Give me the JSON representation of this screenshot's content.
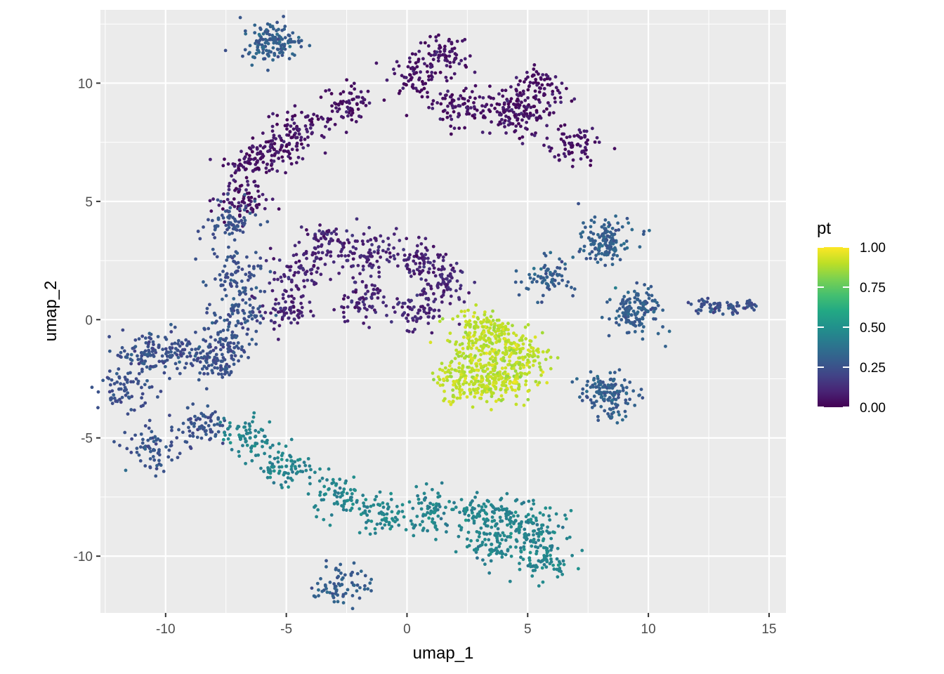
{
  "chart_data": {
    "type": "scatter",
    "xlabel": "umap_1",
    "ylabel": "umap_2",
    "xlim": [
      -12.7,
      15.7
    ],
    "ylim": [
      -12.4,
      13.1
    ],
    "x_ticks": [
      -10,
      -5,
      0,
      5,
      10,
      15
    ],
    "y_ticks": [
      -10,
      -5,
      0,
      5,
      10
    ],
    "x_tick_labels": [
      "-10",
      "-5",
      "0",
      "5",
      "10",
      "15"
    ],
    "y_tick_labels": [
      "-10",
      "-5",
      "0",
      "5",
      "10"
    ],
    "grid": true,
    "background": "#ebebeb",
    "color_variable": "pt",
    "colorscale": "viridis",
    "colorbar": {
      "title": "pt",
      "range": [
        0.0,
        1.0
      ],
      "ticks": [
        0.0,
        0.25,
        0.5,
        0.75,
        1.0
      ],
      "tick_labels": [
        "0.00",
        "0.25",
        "0.50",
        "0.75",
        "1.00"
      ],
      "position": "right"
    },
    "colors": {
      "viridis": [
        "#440154",
        "#482475",
        "#414487",
        "#355f8d",
        "#2a788e",
        "#21918c",
        "#22a884",
        "#44bf70",
        "#7ad151",
        "#bddf26",
        "#fde725"
      ]
    },
    "clusters": [
      {
        "label": "top arc",
        "pt": 0.05,
        "points": [
          [
            2.0,
            9.0
          ],
          [
            4.0,
            8.9
          ],
          [
            5.0,
            8.6
          ],
          [
            6.8,
            7.4
          ],
          [
            0.3,
            10.4
          ],
          [
            1.5,
            11.2
          ],
          [
            -2.5,
            9.2
          ],
          [
            -4.5,
            8.0
          ],
          [
            -5.5,
            7.2
          ],
          [
            -6.5,
            6.6
          ],
          [
            5.5,
            9.8
          ],
          [
            -6.8,
            5.0
          ]
        ]
      },
      {
        "label": "left arc",
        "pt": 0.25,
        "points": [
          [
            -7.2,
            4.0
          ],
          [
            -7.1,
            2.0
          ],
          [
            -7.0,
            0.3
          ],
          [
            -7.4,
            -1.0
          ],
          [
            -8.0,
            -1.8
          ],
          [
            -9.5,
            -1.3
          ],
          [
            -11.0,
            -1.4
          ],
          [
            -11.7,
            -3.0
          ],
          [
            -10.5,
            -5.5
          ],
          [
            -8.5,
            -4.5
          ]
        ]
      },
      {
        "label": "bottom tail",
        "pt": 0.45,
        "points": [
          [
            -6.5,
            -5.0
          ],
          [
            -5.0,
            -6.2
          ],
          [
            -3.0,
            -7.4
          ],
          [
            -1.0,
            -8.2
          ],
          [
            1.0,
            -8.1
          ],
          [
            3.0,
            -8.3
          ],
          [
            4.5,
            -8.5
          ],
          [
            5.5,
            -9.0
          ],
          [
            5.6,
            -10.2
          ],
          [
            3.5,
            -9.5
          ]
        ]
      },
      {
        "label": "middle blob",
        "pt": 0.1,
        "points": [
          [
            -5.1,
            0.4
          ],
          [
            -4.5,
            2.0
          ],
          [
            -3.2,
            3.3
          ],
          [
            -1.5,
            2.8
          ],
          [
            0.5,
            2.6
          ],
          [
            1.5,
            1.7
          ],
          [
            0.5,
            0.4
          ],
          [
            -2.0,
            0.7
          ]
        ]
      },
      {
        "label": "yellow cluster",
        "pt": 0.9,
        "points": [
          [
            2.8,
            -0.3
          ],
          [
            3.5,
            -0.6
          ],
          [
            4.3,
            -1.0
          ],
          [
            4.8,
            -1.6
          ],
          [
            4.5,
            -2.5
          ],
          [
            3.6,
            -2.5
          ],
          [
            2.8,
            -2.7
          ],
          [
            2.1,
            -2.6
          ],
          [
            2.8,
            -1.6
          ]
        ]
      },
      {
        "label": "far right band",
        "pt": 0.25,
        "points": [
          [
            12.2,
            0.55
          ],
          [
            12.8,
            0.5
          ],
          [
            13.5,
            0.5
          ],
          [
            14.2,
            0.6
          ]
        ]
      },
      {
        "label": "small islands",
        "pt": 0.3,
        "points": [
          [
            -5.8,
            11.8
          ],
          [
            -5.4,
            11.7
          ],
          [
            8.0,
            3.2
          ],
          [
            8.4,
            3.5
          ],
          [
            5.8,
            1.8
          ],
          [
            9.3,
            0.2
          ],
          [
            9.6,
            0.5
          ],
          [
            8.2,
            -3.1
          ],
          [
            8.4,
            -3.3
          ],
          [
            -2.7,
            -11.2
          ]
        ]
      }
    ]
  }
}
